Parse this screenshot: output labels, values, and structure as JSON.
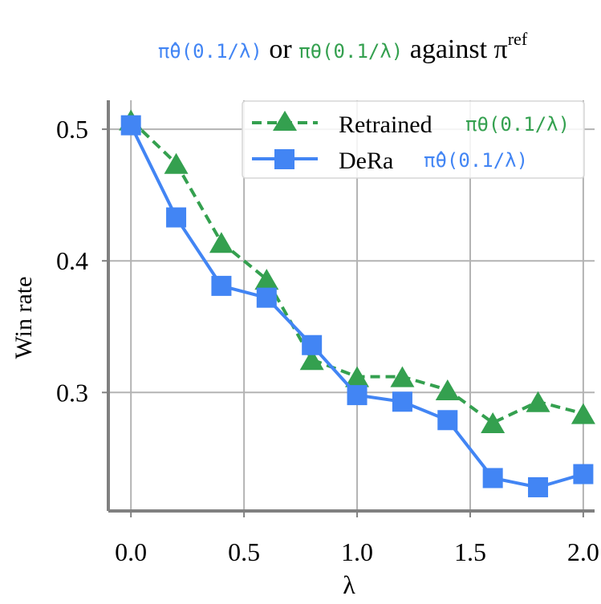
{
  "chart_data": {
    "type": "line",
    "title": {
      "part1": "π̂θ(0.1/λ)",
      "part2": " or ",
      "part3": "πθ(0.1/λ)",
      "part4": " against π",
      "part4_sup": "ref"
    },
    "xlabel": "λ",
    "ylabel": "Win rate",
    "xlim": [
      -0.1,
      2.05
    ],
    "ylim": [
      0.21,
      0.522
    ],
    "xticks": [
      0.0,
      0.5,
      1.0,
      1.5,
      2.0
    ],
    "xtick_labels": [
      "0.0",
      "0.5",
      "1.0",
      "1.5",
      "2.0"
    ],
    "yticks": [
      0.3,
      0.4,
      0.5
    ],
    "ytick_labels": [
      "0.3",
      "0.4",
      "0.5"
    ],
    "grid": true,
    "legend_position": "top-right",
    "x": [
      0.0,
      0.2,
      0.4,
      0.6,
      0.8,
      1.0,
      1.2,
      1.4,
      1.6,
      1.8,
      2.0
    ],
    "series": [
      {
        "name": "Retrained",
        "name_math": "πθ(0.1/λ)",
        "marker": "triangle",
        "line_style": "dashed",
        "color": "#34a04f",
        "values": [
          0.507,
          0.474,
          0.414,
          0.386,
          0.325,
          0.312,
          0.312,
          0.302,
          0.277,
          0.293,
          0.284
        ]
      },
      {
        "name": "DeRa",
        "name_math": "π̂θ(0.1/λ)",
        "marker": "square",
        "line_style": "solid",
        "color": "#4285f4",
        "values": [
          0.503,
          0.433,
          0.381,
          0.372,
          0.336,
          0.298,
          0.293,
          0.279,
          0.235,
          0.228,
          0.238
        ]
      }
    ]
  }
}
